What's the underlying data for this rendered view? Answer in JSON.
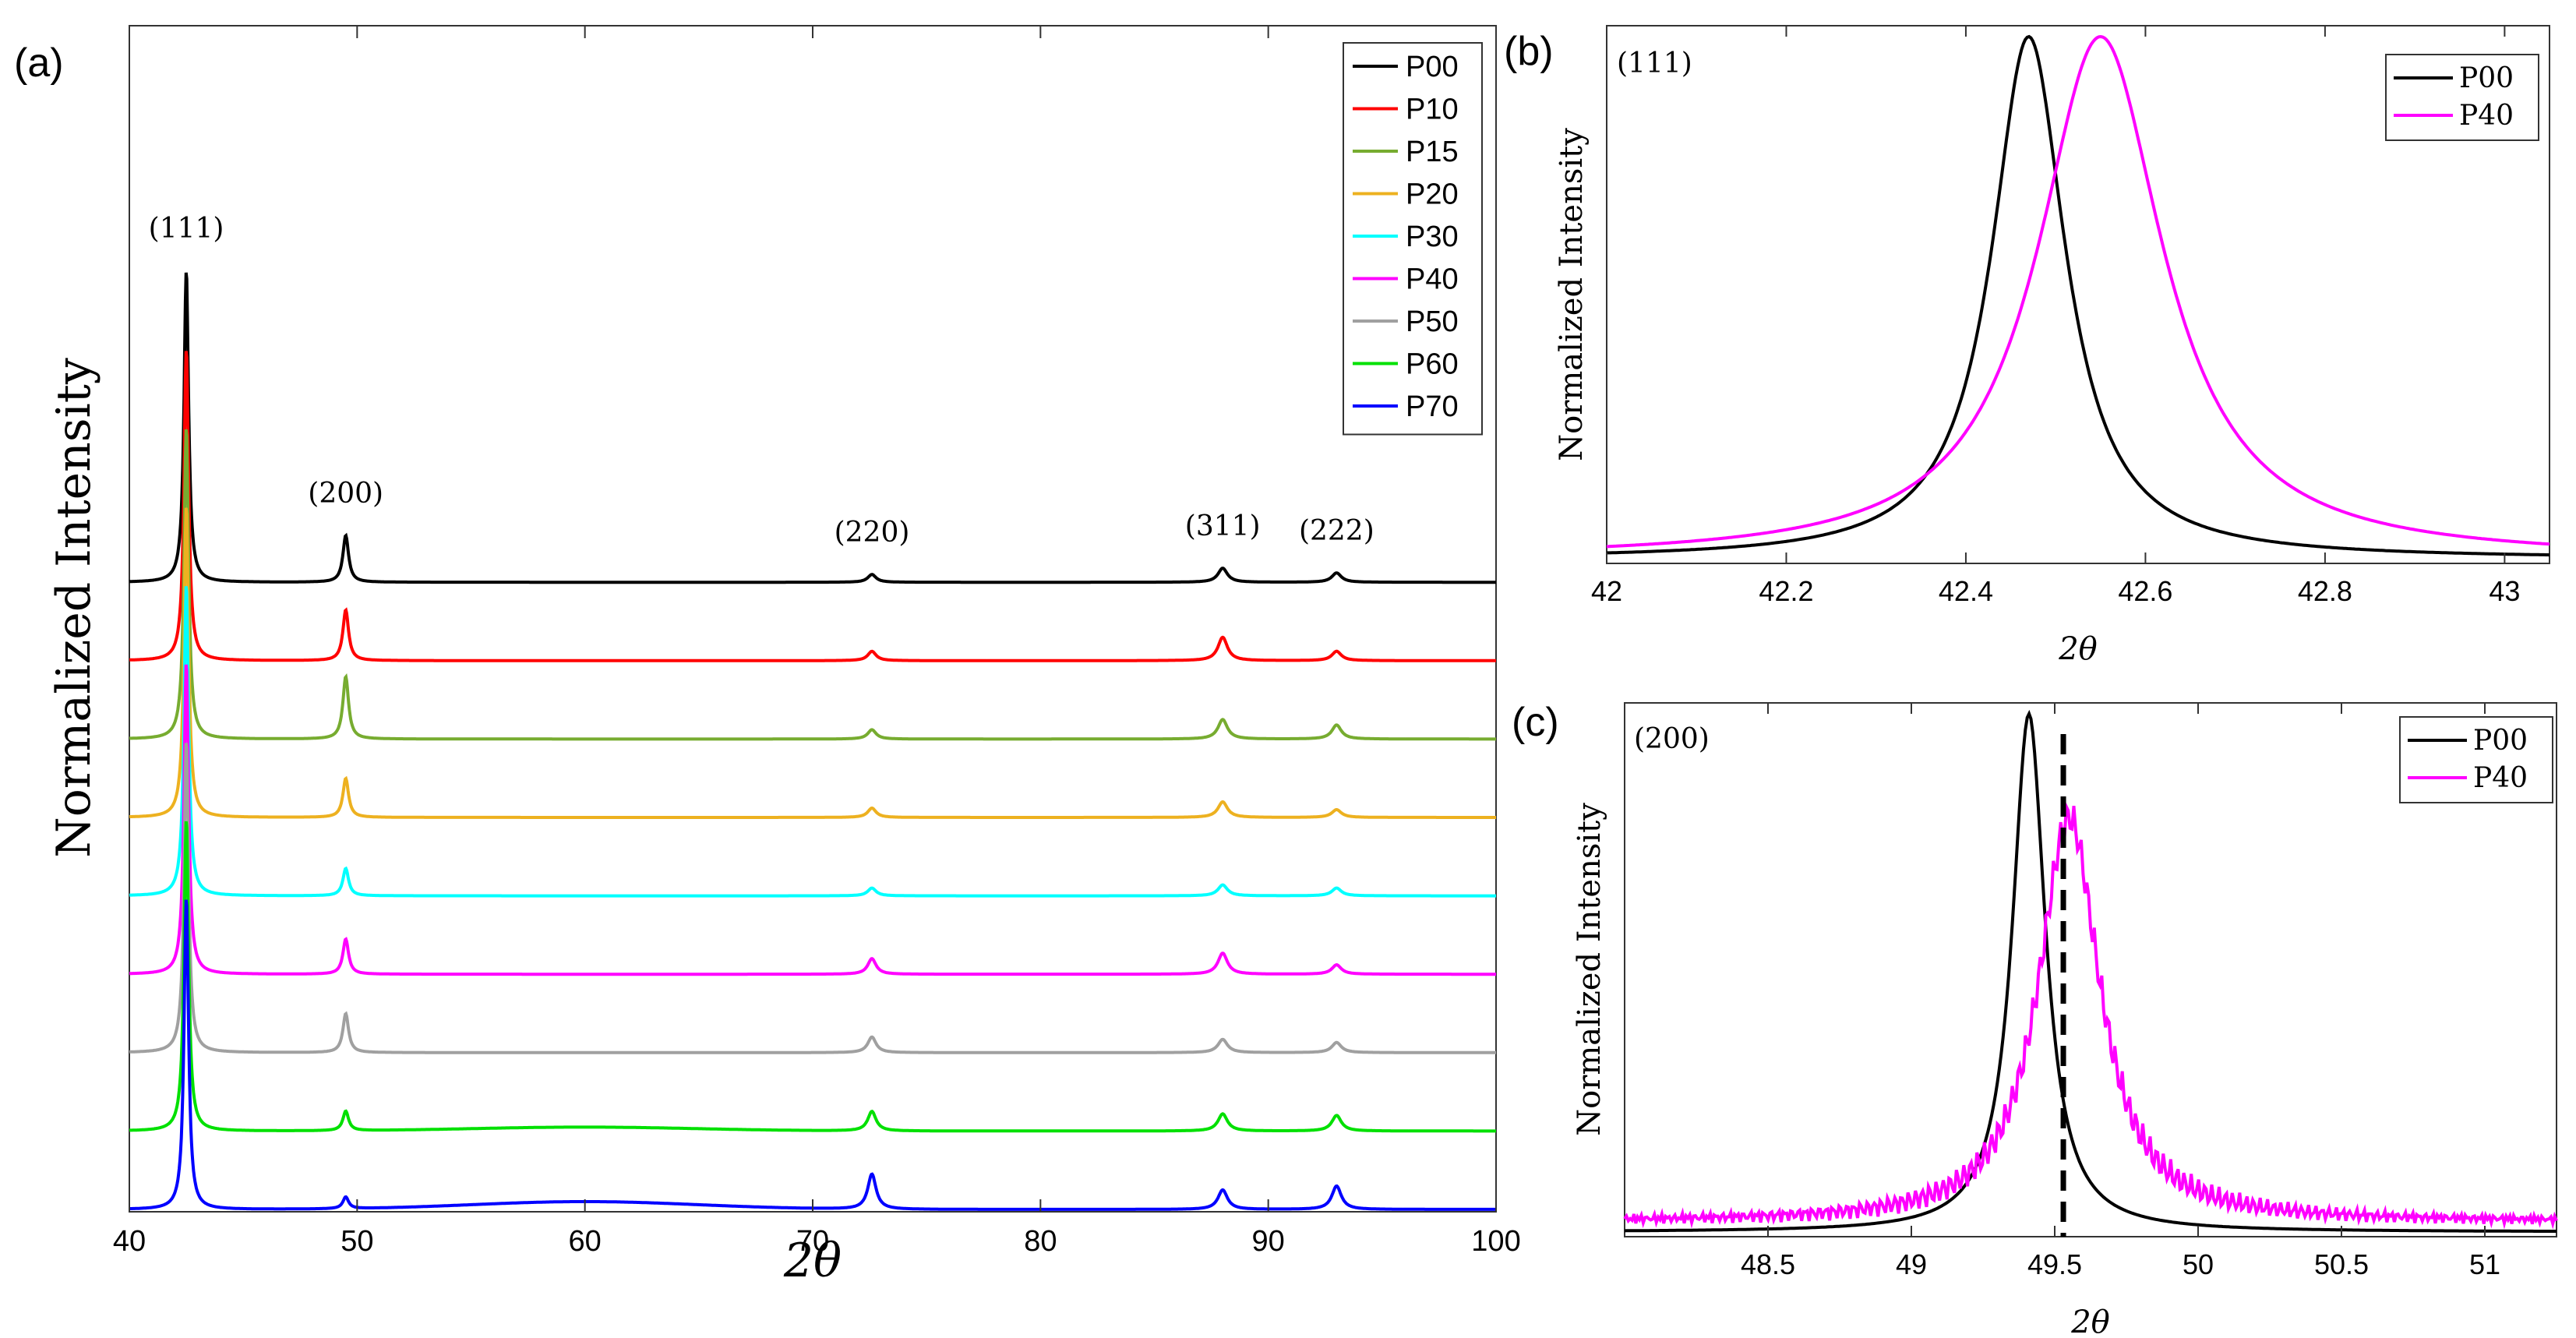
{
  "chart_data": [
    {
      "panel_label": "(a)",
      "type": "line",
      "title": "",
      "xlabel": "2θ",
      "ylabel": "Normalized Intensity",
      "xlim": [
        40,
        100
      ],
      "xticks": [
        40,
        50,
        60,
        70,
        80,
        90,
        100
      ],
      "grid": false,
      "legend_position": "top-right",
      "offset_step": 1.0,
      "peaks": [
        {
          "label": "(111)",
          "position": 42.5,
          "height": 4.0,
          "width": 0.12
        },
        {
          "label": "(200)",
          "position": 49.5,
          "height": 0.6,
          "width": 0.15
        },
        {
          "label": "(220)",
          "position": 72.6,
          "height": 0.1,
          "width": 0.22
        },
        {
          "label": "(311)",
          "position": 88.0,
          "height": 0.18,
          "width": 0.25
        },
        {
          "label": "(222)",
          "position": 93.0,
          "height": 0.12,
          "width": 0.25
        }
      ],
      "series": [
        {
          "name": "P00",
          "color": "#000000",
          "baseline": 8,
          "peak_heights": [
            4.0,
            0.6,
            0.1,
            0.18,
            0.12
          ],
          "hump": 0
        },
        {
          "name": "P10",
          "color": "#ff0000",
          "baseline": 7,
          "peak_heights": [
            4.0,
            0.65,
            0.12,
            0.3,
            0.12
          ],
          "hump": 0
        },
        {
          "name": "P15",
          "color": "#77ac30",
          "baseline": 6,
          "peak_heights": [
            4.0,
            0.8,
            0.12,
            0.25,
            0.18
          ],
          "hump": 0
        },
        {
          "name": "P20",
          "color": "#edb120",
          "baseline": 5,
          "peak_heights": [
            4.0,
            0.5,
            0.12,
            0.2,
            0.1
          ],
          "hump": 0
        },
        {
          "name": "P30",
          "color": "#00ffff",
          "baseline": 4,
          "peak_heights": [
            4.0,
            0.35,
            0.1,
            0.14,
            0.1
          ],
          "hump": 0
        },
        {
          "name": "P40",
          "color": "#ff00ff",
          "baseline": 3,
          "peak_heights": [
            4.0,
            0.45,
            0.2,
            0.27,
            0.12
          ],
          "hump": 0
        },
        {
          "name": "P50",
          "color": "#a0a0a0",
          "baseline": 2,
          "peak_heights": [
            4.0,
            0.5,
            0.2,
            0.17,
            0.13
          ],
          "hump": 0
        },
        {
          "name": "P60",
          "color": "#00e000",
          "baseline": 1,
          "peak_heights": [
            4.0,
            0.25,
            0.25,
            0.22,
            0.2
          ],
          "hump": 0.05
        },
        {
          "name": "P70",
          "color": "#0000ff",
          "baseline": 0,
          "peak_heights": [
            4.0,
            0.15,
            0.45,
            0.25,
            0.3
          ],
          "hump": 0.1
        }
      ]
    },
    {
      "panel_label": "(b)",
      "type": "line",
      "annotation": "(111)",
      "xlabel": "2θ",
      "ylabel": "Normalized Intensity",
      "xlim": [
        42.0,
        43.05
      ],
      "xticks": [
        42,
        42.2,
        42.4,
        42.6,
        42.8,
        43
      ],
      "xtick_labels": [
        "42",
        "42.2",
        "42.4",
        "42.6",
        "42.8",
        "43"
      ],
      "ylim": [
        0,
        1.0
      ],
      "legend_position": "top-right",
      "series": [
        {
          "name": "P00",
          "color": "#000000",
          "center": 42.47,
          "gamma": 0.05,
          "amplitude": 1.0,
          "base": 0.0
        },
        {
          "name": "P40",
          "color": "#ff00ff",
          "center": 42.55,
          "gamma": 0.085,
          "amplitude": 1.0,
          "base": 0.0
        }
      ]
    },
    {
      "panel_label": "(c)",
      "type": "line",
      "annotation": "(200)",
      "xlabel": "2θ",
      "ylabel": "Normalized Intensity",
      "xlim": [
        48.0,
        51.25
      ],
      "xticks": [
        48.5,
        49,
        49.5,
        50,
        50.5,
        51
      ],
      "xtick_labels": [
        "48.5",
        "49",
        "49.5",
        "50",
        "50.5",
        "51"
      ],
      "ylim": [
        0,
        1.0
      ],
      "reference_line_x": 49.53,
      "legend_position": "top-right",
      "series": [
        {
          "name": "P00",
          "color": "#000000",
          "center": 49.41,
          "gamma": 0.07,
          "amplitude": 1.0,
          "base": 0.0
        },
        {
          "name": "P40",
          "color": "#ff00ff",
          "center": 49.55,
          "gamma": 0.13,
          "amplitude": 0.78,
          "base": 0.02
        }
      ]
    }
  ]
}
